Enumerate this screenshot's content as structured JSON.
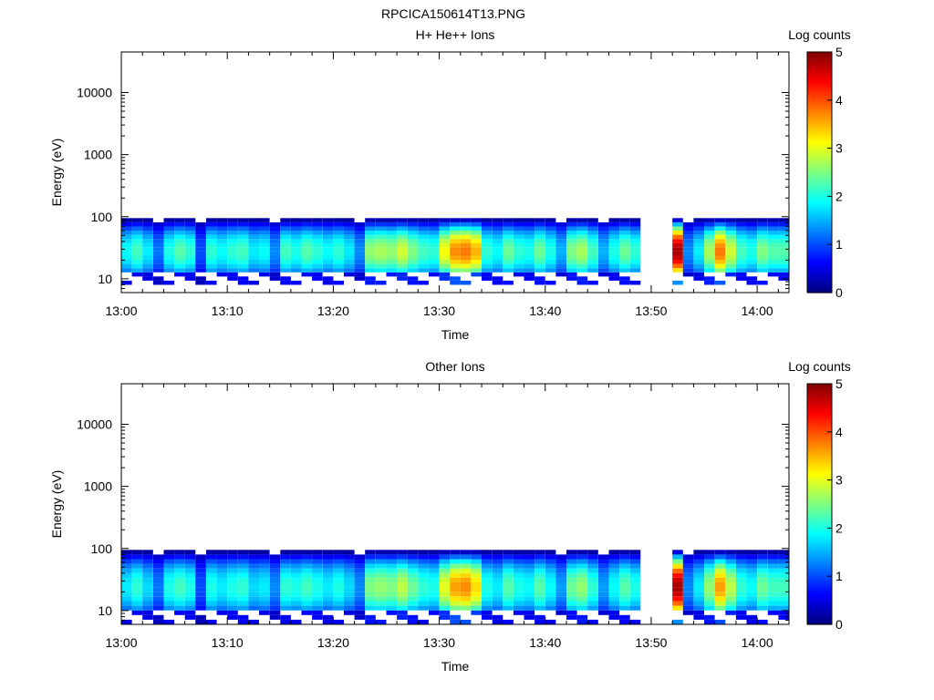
{
  "figure": {
    "title": "RPCICA150614T13.PNG"
  },
  "colors": {
    "colormap": [
      "#00007f",
      "#0000ff",
      "#007fff",
      "#00ffff",
      "#7fff7f",
      "#ffff00",
      "#ff7f00",
      "#ff0000",
      "#7f0000"
    ],
    "axis": "#000000",
    "background": "#ffffff"
  },
  "chart_data": [
    {
      "type": "heatmap",
      "title": "H+ He++ Ions",
      "xlabel": "Time",
      "ylabel": "Energy (eV)",
      "colorbar_label": "Log counts",
      "y_scale": "log",
      "xlim": [
        "13:00",
        "14:03"
      ],
      "ylim": [
        6,
        45000
      ],
      "clim": [
        0,
        5
      ],
      "x_ticks": [
        "13:00",
        "13:10",
        "13:20",
        "13:30",
        "13:40",
        "13:50",
        "14:00"
      ],
      "y_ticks": [
        "10",
        "100",
        "1000",
        "10000"
      ],
      "colorbar_ticks": [
        "0",
        "1",
        "2",
        "3",
        "4",
        "5"
      ],
      "energy_range_eV": [
        8,
        95
      ],
      "time_columns": [
        "13:00",
        "13:01",
        "13:02",
        "13:03",
        "13:04",
        "13:05",
        "13:06",
        "13:07",
        "13:08",
        "13:09",
        "13:10",
        "13:11",
        "13:12",
        "13:13",
        "13:14",
        "13:15",
        "13:16",
        "13:17",
        "13:18",
        "13:19",
        "13:20",
        "13:21",
        "13:22",
        "13:23",
        "13:24",
        "13:25",
        "13:26",
        "13:27",
        "13:28",
        "13:29",
        "13:30",
        "13:31",
        "13:32",
        "13:33",
        "13:34",
        "13:35",
        "13:36",
        "13:37",
        "13:38",
        "13:39",
        "13:40",
        "13:41",
        "13:42",
        "13:43",
        "13:44",
        "13:45",
        "13:46",
        "13:47",
        "13:48",
        "13:49",
        "13:50",
        "13:51",
        "13:52",
        "13:53",
        "13:54",
        "13:55",
        "13:56",
        "13:57",
        "13:58",
        "13:59",
        "14:00",
        "14:01",
        "14:02"
      ],
      "column_peak_log_counts": [
        1.9,
        2.2,
        1.8,
        1.2,
        2.0,
        2.3,
        2.1,
        1.0,
        2.1,
        1.9,
        2.1,
        2.2,
        1.8,
        1.9,
        1.3,
        2.2,
        2.0,
        2.3,
        2.1,
        1.9,
        2.1,
        1.8,
        1.3,
        2.6,
        2.7,
        2.6,
        2.9,
        2.5,
        2.2,
        2.1,
        3.1,
        3.7,
        3.8,
        3.5,
        2.1,
        1.9,
        2.4,
        2.1,
        2.0,
        2.4,
        2.0,
        1.5,
        2.5,
        2.7,
        2.2,
        1.5,
        2.0,
        2.4,
        2.1,
        null,
        null,
        null,
        4.8,
        1.3,
        1.8,
        2.7,
        3.8,
        2.9,
        2.2,
        2.0,
        2.5,
        2.3,
        2.3
      ]
    },
    {
      "type": "heatmap",
      "title": "Other Ions",
      "xlabel": "Time",
      "ylabel": "Energy (eV)",
      "colorbar_label": "Log counts",
      "y_scale": "log",
      "xlim": [
        "13:00",
        "14:03"
      ],
      "ylim": [
        6,
        45000
      ],
      "clim": [
        0,
        5
      ],
      "x_ticks": [
        "13:00",
        "13:10",
        "13:20",
        "13:30",
        "13:40",
        "13:50",
        "14:00"
      ],
      "y_ticks": [
        "10",
        "100",
        "1000",
        "10000"
      ],
      "colorbar_ticks": [
        "0",
        "1",
        "2",
        "3",
        "4",
        "5"
      ],
      "energy_range_eV": [
        6,
        95
      ],
      "time_columns": [
        "13:00",
        "13:01",
        "13:02",
        "13:03",
        "13:04",
        "13:05",
        "13:06",
        "13:07",
        "13:08",
        "13:09",
        "13:10",
        "13:11",
        "13:12",
        "13:13",
        "13:14",
        "13:15",
        "13:16",
        "13:17",
        "13:18",
        "13:19",
        "13:20",
        "13:21",
        "13:22",
        "13:23",
        "13:24",
        "13:25",
        "13:26",
        "13:27",
        "13:28",
        "13:29",
        "13:30",
        "13:31",
        "13:32",
        "13:33",
        "13:34",
        "13:35",
        "13:36",
        "13:37",
        "13:38",
        "13:39",
        "13:40",
        "13:41",
        "13:42",
        "13:43",
        "13:44",
        "13:45",
        "13:46",
        "13:47",
        "13:48",
        "13:49",
        "13:50",
        "13:51",
        "13:52",
        "13:53",
        "13:54",
        "13:55",
        "13:56",
        "13:57",
        "13:58",
        "13:59",
        "14:00",
        "14:01",
        "14:02"
      ],
      "column_peak_log_counts": [
        1.8,
        2.1,
        1.7,
        1.2,
        2.0,
        2.2,
        2.0,
        1.0,
        2.0,
        1.8,
        2.0,
        2.1,
        1.7,
        1.8,
        1.3,
        2.1,
        2.0,
        2.2,
        2.0,
        1.8,
        2.0,
        1.7,
        1.3,
        2.5,
        2.6,
        2.5,
        2.8,
        2.4,
        2.1,
        2.0,
        3.0,
        3.6,
        3.7,
        3.3,
        2.0,
        1.8,
        2.3,
        2.0,
        1.9,
        2.3,
        1.9,
        1.4,
        2.4,
        2.6,
        2.1,
        1.4,
        1.9,
        2.3,
        2.0,
        null,
        null,
        null,
        4.8,
        1.3,
        1.8,
        2.6,
        3.6,
        2.8,
        2.1,
        1.9,
        2.4,
        2.2,
        2.2
      ]
    }
  ]
}
